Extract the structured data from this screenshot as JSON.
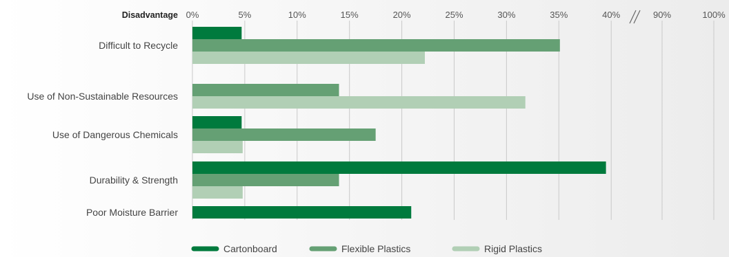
{
  "chart_data": {
    "type": "bar",
    "orientation": "horizontal",
    "axis_title": "Disadvantage",
    "categories": [
      "Difficult to Recycle",
      "Use of Non-Sustainable Resources",
      "Use of Dangerous Chemicals",
      "Durability & Strength",
      "Poor Moisture Barrier"
    ],
    "ticks": [
      "0%",
      "5%",
      "10%",
      "15%",
      "20%",
      "25%",
      "30%",
      "35%",
      "40%",
      "90%",
      "100%"
    ],
    "tick_values": [
      0,
      5,
      10,
      15,
      20,
      25,
      30,
      35,
      40,
      90,
      100
    ],
    "axis_break": "between 40% and 90%",
    "grid": true,
    "legend_position": "bottom",
    "series": [
      {
        "name": "Cartonboard",
        "color": "#007a3d",
        "values": [
          4.7,
          null,
          4.7,
          39.5,
          20.9
        ]
      },
      {
        "name": "Flexible Plastics",
        "color": "#65a074",
        "values": [
          35.1,
          14.0,
          17.5,
          14.0,
          null
        ]
      },
      {
        "name": "Rigid Plastics",
        "color": "#b1cfb5",
        "values": [
          22.2,
          31.8,
          4.8,
          4.8,
          null
        ]
      }
    ]
  }
}
